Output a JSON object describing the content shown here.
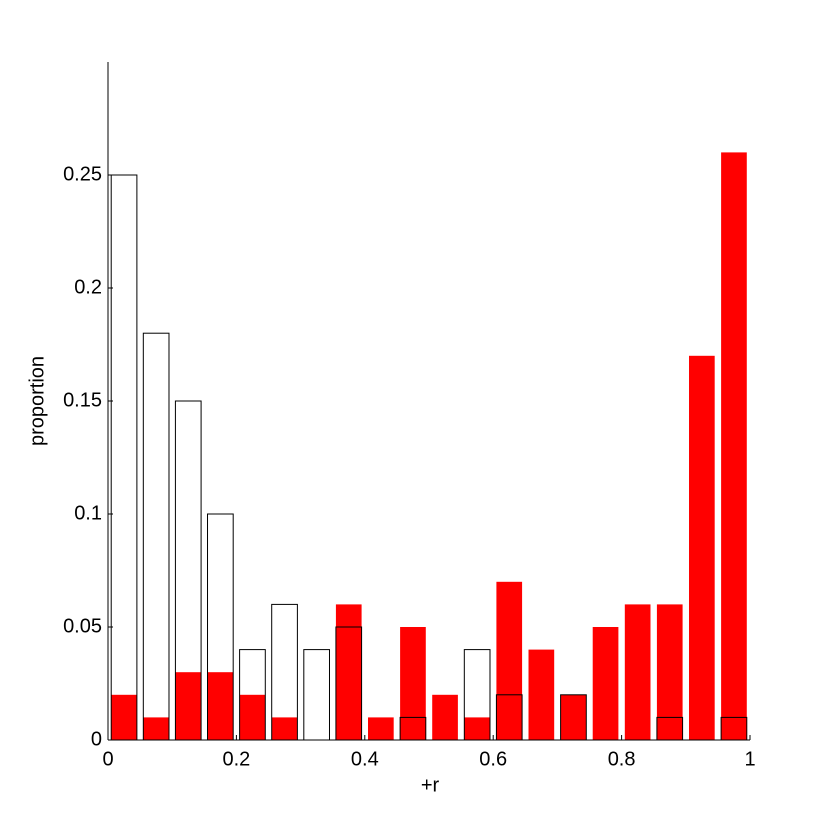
{
  "chart_data": {
    "type": "histogram",
    "xlabel": "+r",
    "ylabel": "proportion",
    "bins": [
      0,
      0.05,
      0.1,
      0.15,
      0.2,
      0.25,
      0.3,
      0.35,
      0.4,
      0.45,
      0.5,
      0.55,
      0.6,
      0.65,
      0.7,
      0.75,
      0.8,
      0.85,
      0.9,
      0.95,
      1
    ],
    "series": [
      {
        "color": "#ff0000",
        "style": "filled",
        "values": [
          0.02,
          0.01,
          0.03,
          0.03,
          0.02,
          0.01,
          0,
          0.06,
          0.01,
          0.05,
          0.02,
          0.01,
          0.07,
          0.04,
          0.02,
          0.05,
          0.06,
          0.06,
          0.17,
          0.26
        ]
      },
      {
        "color": "#000000",
        "style": "outline",
        "values": [
          0.25,
          0.18,
          0.15,
          0.1,
          0.04,
          0.06,
          0.04,
          0.05,
          0,
          0.01,
          0,
          0.04,
          0.02,
          0,
          0.02,
          0,
          0,
          0.01,
          0,
          0.01
        ]
      }
    ],
    "xlim": [
      0,
      1
    ],
    "xticks": [
      0,
      0.2,
      0.4,
      0.6,
      0.8,
      1
    ],
    "ylim": [
      0,
      0.3
    ],
    "yticks": [
      0,
      0.05,
      0.1,
      0.15,
      0.2,
      0.25
    ],
    "grid": false
  }
}
